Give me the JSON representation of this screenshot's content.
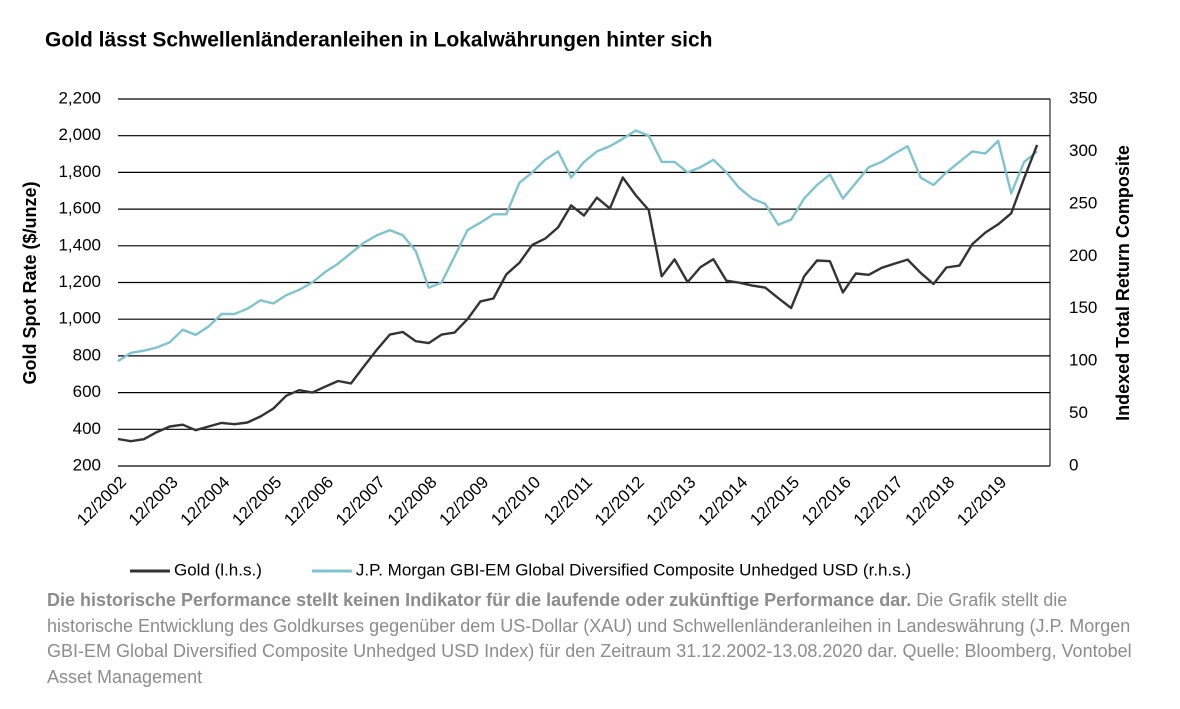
{
  "chart_data": {
    "type": "line",
    "title": "Gold lässt Schwellenländeranleihen in Lokalwährungen hinter sich",
    "y_label": "Gold Spot Rate ($/unze)",
    "y2_label": "Indexed Total Return Composite",
    "categories": [
      "12/2002",
      null,
      null,
      null,
      "12/2003",
      null,
      null,
      null,
      "12/2004",
      null,
      null,
      null,
      "12/2005",
      null,
      null,
      null,
      "12/2006",
      null,
      null,
      null,
      "12/2007",
      null,
      null,
      null,
      "12/2008",
      null,
      null,
      null,
      "12/2009",
      null,
      null,
      null,
      "12/2010",
      null,
      null,
      null,
      "12/2011",
      null,
      null,
      null,
      "12/2012",
      null,
      null,
      null,
      "12/2013",
      null,
      null,
      null,
      "12/2014",
      null,
      null,
      null,
      "12/2015",
      null,
      null,
      null,
      "12/2016",
      null,
      null,
      null,
      "12/2017",
      null,
      null,
      null,
      "12/2018",
      null,
      null,
      null,
      "12/2019",
      null,
      null,
      null
    ],
    "series": [
      {
        "name": "Gold (l.h.s.)",
        "color": "#333333",
        "values": [
          347,
          335,
          346,
          385,
          415,
          425,
          395,
          415,
          435,
          428,
          437,
          470,
          513,
          583,
          613,
          600,
          632,
          663,
          650,
          743,
          834,
          916,
          930,
          880,
          870,
          916,
          927,
          1000,
          1097,
          1113,
          1244,
          1307,
          1405,
          1439,
          1500,
          1620,
          1565,
          1662,
          1604,
          1772,
          1675,
          1595,
          1234,
          1326,
          1202,
          1284,
          1327,
          1210,
          1199,
          1183,
          1172,
          1115,
          1061,
          1233,
          1320,
          1316,
          1146,
          1249,
          1242,
          1280,
          1303,
          1325,
          1253,
          1192,
          1282,
          1292,
          1409,
          1472,
          1517,
          1577,
          1768,
          1950
        ]
      },
      {
        "name": "J.P. Morgan GBI-EM Global Diversified Composite Unhedged USD (r.h.s.)",
        "color": "#7fc3cf",
        "axis": "y2",
        "values": [
          100,
          108,
          110,
          113,
          118,
          130,
          125,
          133,
          145,
          145,
          150,
          158,
          155,
          163,
          168,
          175,
          185,
          193,
          203,
          213,
          220,
          225,
          220,
          205,
          170,
          175,
          200,
          225,
          232,
          240,
          240,
          270,
          280,
          292,
          300,
          275,
          290,
          300,
          305,
          312,
          320,
          315,
          290,
          290,
          280,
          285,
          292,
          280,
          265,
          255,
          250,
          230,
          235,
          255,
          268,
          278,
          255,
          270,
          285,
          290,
          298,
          305,
          275,
          268,
          280,
          290,
          300,
          298,
          310,
          260,
          290,
          300
        ]
      }
    ],
    "ylim": [
      200,
      2200
    ],
    "yticks": [
      200,
      400,
      600,
      800,
      {
        "value": 1000,
        "label": "1,000"
      },
      {
        "value": 1200,
        "label": "1,200"
      },
      {
        "value": 1400,
        "label": "1,400"
      },
      {
        "value": 1600,
        "label": "1,600"
      },
      {
        "value": 1800,
        "label": "1,800"
      },
      {
        "value": 2000,
        "label": "2,000"
      },
      {
        "value": 2200,
        "label": "2,200"
      }
    ],
    "y2lim": [
      0,
      350
    ],
    "y2ticks": [
      0,
      50,
      100,
      150,
      200,
      250,
      300,
      350
    ],
    "grid": true,
    "legend": "bottom",
    "footnote": {
      "bold": "Die historische Performance stellt keinen Indikator für die laufende oder zukünftige Performance dar.",
      "text": "Die Grafik stellt die historische Entwicklung des Goldkurses gegenüber dem US-Dollar (XAU) und Schwellenländeranleihen in Landeswährung (J.P. Morgen GBI-EM Global Diversified Composite Unhedged USD Index) für den Zeitraum 31.12.2002-13.08.2020 dar. Quelle: Bloomberg, Vontobel Asset Management"
    }
  }
}
